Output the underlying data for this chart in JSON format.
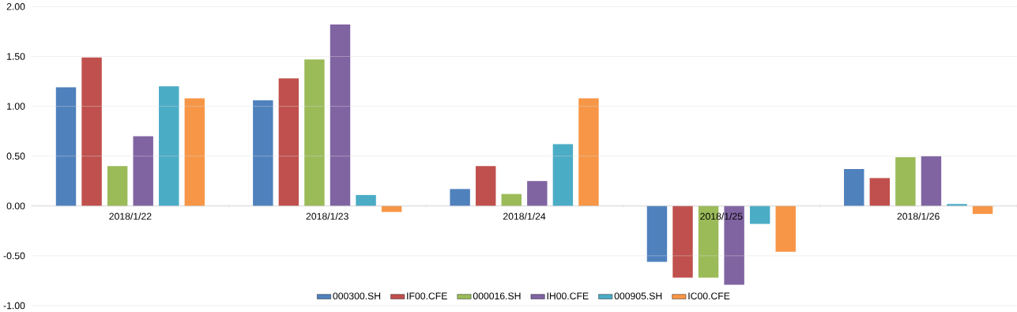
{
  "chart_data": {
    "type": "bar",
    "categories": [
      "2018/1/22",
      "2018/1/23",
      "2018/1/24",
      "2018/1/25",
      "2018/1/26"
    ],
    "series": [
      {
        "name": "000300.SH",
        "color": "#4f81bd",
        "values": [
          1.19,
          1.06,
          0.17,
          -0.56,
          0.37
        ]
      },
      {
        "name": "IF00.CFE",
        "color": "#c0504d",
        "values": [
          1.49,
          1.28,
          0.4,
          -0.72,
          0.28
        ]
      },
      {
        "name": "000016.SH",
        "color": "#9bbb59",
        "values": [
          0.4,
          1.47,
          0.12,
          -0.72,
          0.49
        ]
      },
      {
        "name": "IH00.CFE",
        "color": "#8064a2",
        "values": [
          0.7,
          1.82,
          0.25,
          -0.79,
          0.5
        ]
      },
      {
        "name": "000905.SH",
        "color": "#4bacc6",
        "values": [
          1.2,
          0.11,
          0.62,
          -0.18,
          0.02
        ]
      },
      {
        "name": "IC00.CFE",
        "color": "#f79646",
        "values": [
          1.08,
          -0.06,
          1.08,
          -0.46,
          -0.08
        ]
      }
    ],
    "ylim": [
      -1,
      2
    ],
    "yticks": [
      {
        "value": -1,
        "label": "-1.00"
      },
      {
        "value": -0.5,
        "label": "-0.50"
      },
      {
        "value": 0,
        "label": "0.00"
      },
      {
        "value": 0.5,
        "label": "0.50"
      },
      {
        "value": 1,
        "label": "1.00"
      },
      {
        "value": 1.5,
        "label": "1.50"
      },
      {
        "value": 2,
        "label": "2.00"
      }
    ],
    "grid": "y",
    "legend": "bottom"
  }
}
